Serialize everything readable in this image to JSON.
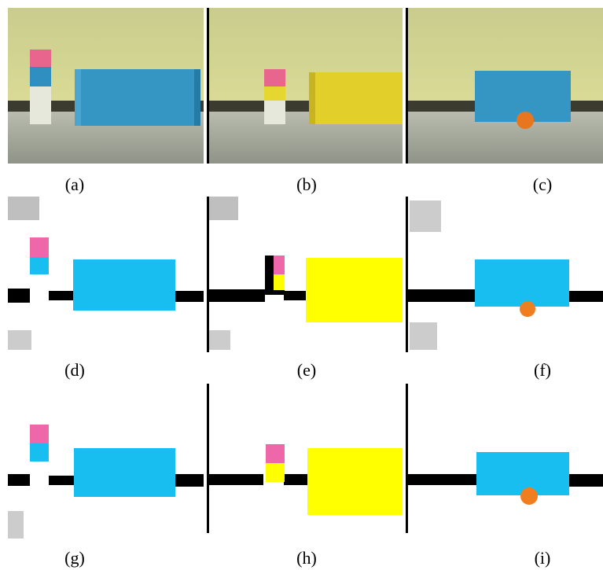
{
  "captions": [
    "(a)",
    "(b)",
    "(c)",
    "(d)",
    "(e)",
    "(f)",
    "(g)",
    "(h)",
    "(i)"
  ]
}
